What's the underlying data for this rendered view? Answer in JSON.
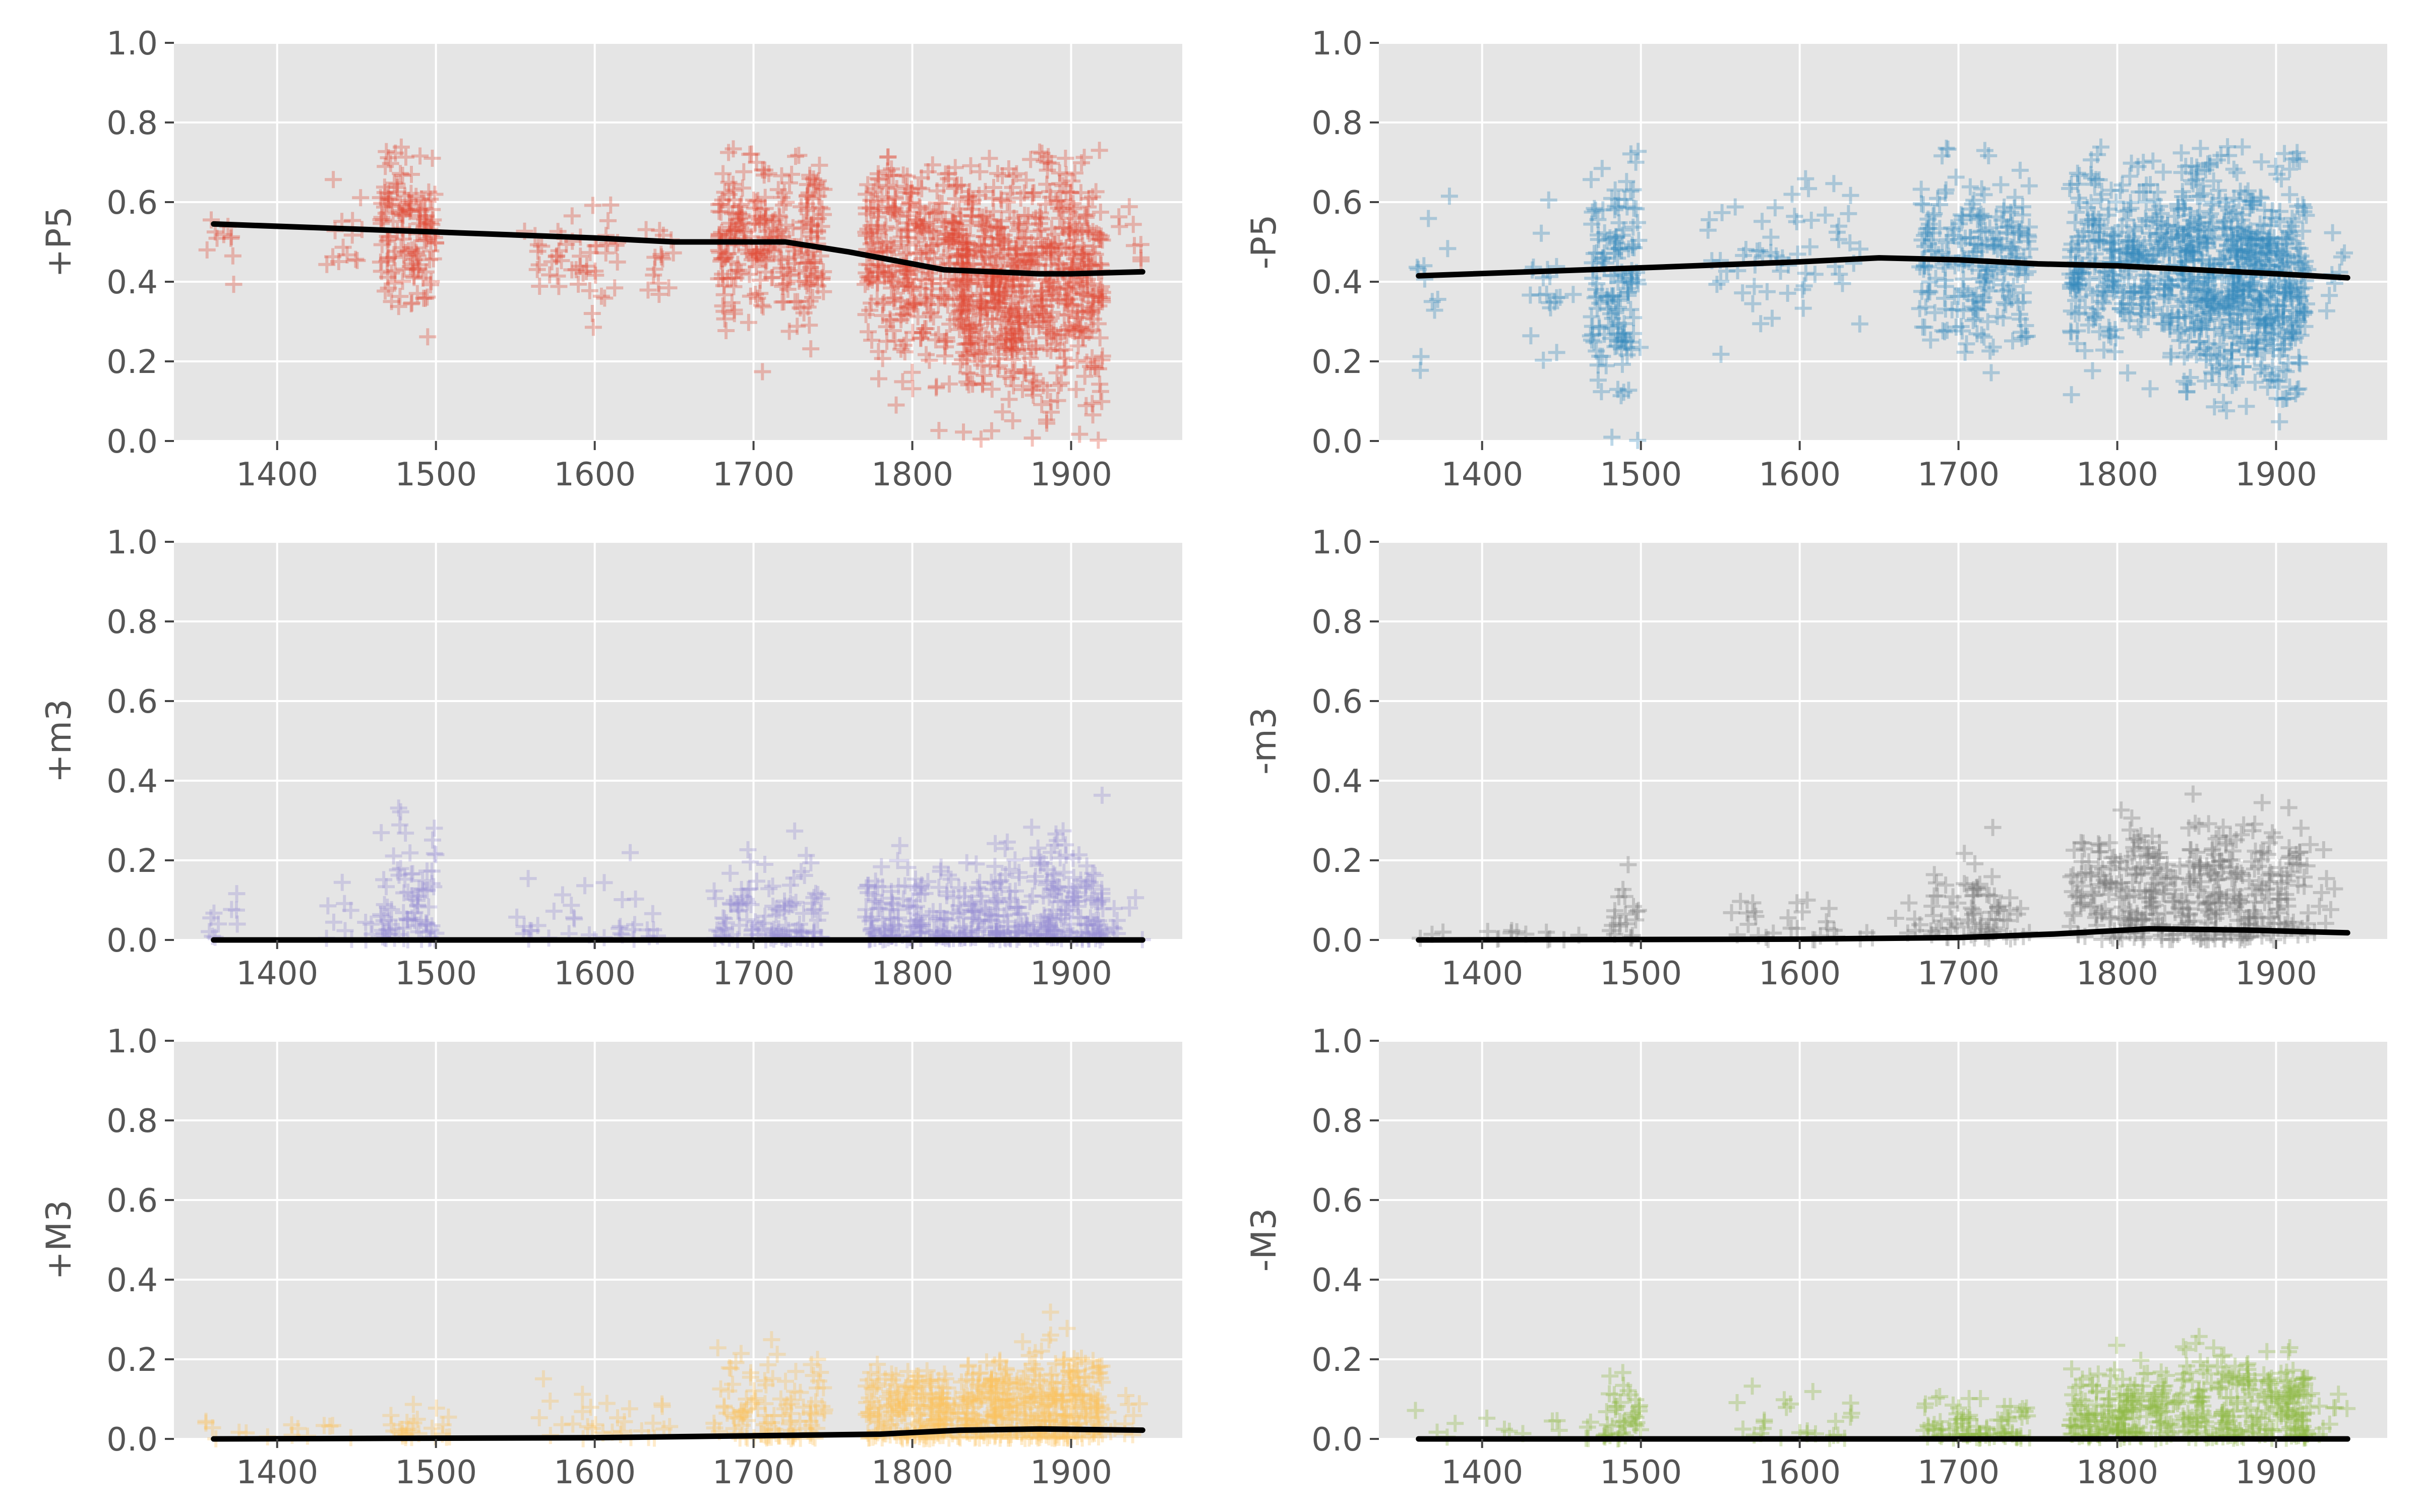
{
  "chart_data": [
    {
      "type": "scatter",
      "ylabel": "+P5",
      "color": "#E24A33",
      "xlim": [
        1335,
        1970
      ],
      "ylim": [
        0,
        1
      ],
      "xticks": [
        1400,
        1500,
        1600,
        1700,
        1800,
        1900
      ],
      "yticks": [
        0.0,
        0.2,
        0.4,
        0.6,
        0.8,
        1.0
      ],
      "tick_labels_x": [
        "1400",
        "1500",
        "1600",
        "1700",
        "1800",
        "1900"
      ],
      "tick_labels_y": [
        "0.0",
        "0.2",
        "0.4",
        "0.6",
        "0.8",
        "1.0"
      ],
      "grid": true,
      "clusters": [
        {
          "x": [
            1355,
            1375
          ],
          "y": [
            0.52,
            0.05
          ],
          "n": 10
        },
        {
          "x": [
            1430,
            1455
          ],
          "y": [
            0.5,
            0.06
          ],
          "n": 14
        },
        {
          "x": [
            1465,
            1500
          ],
          "y": [
            0.52,
            0.1
          ],
          "n": 140
        },
        {
          "x": [
            1555,
            1615
          ],
          "y": [
            0.48,
            0.08
          ],
          "n": 50
        },
        {
          "x": [
            1630,
            1650
          ],
          "y": [
            0.47,
            0.07
          ],
          "n": 15
        },
        {
          "x": [
            1678,
            1745
          ],
          "y": [
            0.5,
            0.11
          ],
          "n": 260
        },
        {
          "x": [
            1770,
            1830
          ],
          "y": [
            0.45,
            0.13
          ],
          "n": 320
        },
        {
          "x": [
            1830,
            1870
          ],
          "y": [
            0.38,
            0.14
          ],
          "n": 340
        },
        {
          "x": [
            1870,
            1920
          ],
          "y": [
            0.4,
            0.15
          ],
          "n": 340
        },
        {
          "x": [
            1925,
            1945
          ],
          "y": [
            0.52,
            0.05
          ],
          "n": 8
        }
      ],
      "trend": {
        "x": [
          1360,
          1500,
          1600,
          1650,
          1700,
          1720,
          1760,
          1820,
          1880,
          1900,
          1945
        ],
        "y": [
          0.545,
          0.525,
          0.51,
          0.5,
          0.5,
          0.5,
          0.475,
          0.43,
          0.42,
          0.42,
          0.425
        ]
      }
    },
    {
      "type": "scatter",
      "ylabel": "-P5",
      "color": "#348ABD",
      "xlim": [
        1335,
        1970
      ],
      "ylim": [
        0,
        1
      ],
      "xticks": [
        1400,
        1500,
        1600,
        1700,
        1800,
        1900
      ],
      "yticks": [
        0.0,
        0.2,
        0.4,
        0.6,
        0.8,
        1.0
      ],
      "tick_labels_x": [
        "1400",
        "1500",
        "1600",
        "1700",
        "1800",
        "1900"
      ],
      "tick_labels_y": [
        "0.0",
        "0.2",
        "0.4",
        "0.6",
        "0.8",
        "1.0"
      ],
      "grid": true,
      "clusters": [
        {
          "x": [
            1355,
            1380
          ],
          "y": [
            0.35,
            0.13
          ],
          "n": 12
        },
        {
          "x": [
            1430,
            1460
          ],
          "y": [
            0.42,
            0.1
          ],
          "n": 20
        },
        {
          "x": [
            1468,
            1500
          ],
          "y": [
            0.4,
            0.15
          ],
          "n": 150
        },
        {
          "x": [
            1540,
            1640
          ],
          "y": [
            0.45,
            0.1
          ],
          "n": 60
        },
        {
          "x": [
            1675,
            1745
          ],
          "y": [
            0.45,
            0.12
          ],
          "n": 230
        },
        {
          "x": [
            1770,
            1840
          ],
          "y": [
            0.44,
            0.12
          ],
          "n": 330
        },
        {
          "x": [
            1840,
            1880
          ],
          "y": [
            0.42,
            0.14
          ],
          "n": 330
        },
        {
          "x": [
            1880,
            1920
          ],
          "y": [
            0.4,
            0.14
          ],
          "n": 300
        },
        {
          "x": [
            1925,
            1945
          ],
          "y": [
            0.45,
            0.08
          ],
          "n": 8
        }
      ],
      "trend": {
        "x": [
          1360,
          1500,
          1600,
          1650,
          1700,
          1750,
          1800,
          1850,
          1900,
          1945
        ],
        "y": [
          0.415,
          0.435,
          0.45,
          0.46,
          0.455,
          0.445,
          0.44,
          0.43,
          0.42,
          0.41
        ]
      }
    },
    {
      "type": "scatter",
      "ylabel": "+m3",
      "color": "#988ED5",
      "xlim": [
        1335,
        1970
      ],
      "ylim": [
        0,
        1
      ],
      "xticks": [
        1400,
        1500,
        1600,
        1700,
        1800,
        1900
      ],
      "yticks": [
        0.0,
        0.2,
        0.4,
        0.6,
        0.8,
        1.0
      ],
      "tick_labels_x": [
        "1400",
        "1500",
        "1600",
        "1700",
        "1800",
        "1900"
      ],
      "tick_labels_y": [
        "0.0",
        "0.2",
        "0.4",
        "0.6",
        "0.8",
        "1.0"
      ],
      "grid": true,
      "clusters": [
        {
          "x": [
            1355,
            1380
          ],
          "y": [
            0.03,
            0.05
          ],
          "n": 10
        },
        {
          "x": [
            1430,
            1460
          ],
          "y": [
            0.03,
            0.06
          ],
          "n": 12
        },
        {
          "x": [
            1465,
            1500
          ],
          "y": [
            0.08,
            0.1
          ],
          "n": 80
        },
        {
          "x": [
            1550,
            1640
          ],
          "y": [
            0.03,
            0.07
          ],
          "n": 35
        },
        {
          "x": [
            1675,
            1745
          ],
          "y": [
            0.05,
            0.07
          ],
          "n": 110
        },
        {
          "x": [
            1770,
            1840
          ],
          "y": [
            0.06,
            0.07
          ],
          "n": 160
        },
        {
          "x": [
            1840,
            1920
          ],
          "y": [
            0.07,
            0.09
          ],
          "n": 230
        },
        {
          "x": [
            1920,
            1945
          ],
          "y": [
            0.05,
            0.09
          ],
          "n": 10
        }
      ],
      "trend": {
        "x": [
          1360,
          1945
        ],
        "y": [
          0.0,
          0.0
        ]
      }
    },
    {
      "type": "scatter",
      "ylabel": "-m3",
      "color": "#777777",
      "xlim": [
        1335,
        1970
      ],
      "ylim": [
        0,
        1
      ],
      "xticks": [
        1400,
        1500,
        1600,
        1700,
        1800,
        1900
      ],
      "yticks": [
        0.0,
        0.2,
        0.4,
        0.6,
        0.8,
        1.0
      ],
      "tick_labels_x": [
        "1400",
        "1500",
        "1600",
        "1700",
        "1800",
        "1900"
      ],
      "tick_labels_y": [
        "0.0",
        "0.2",
        "0.4",
        "0.6",
        "0.8",
        "1.0"
      ],
      "grid": true,
      "clusters": [
        {
          "x": [
            1355,
            1470
          ],
          "y": [
            0.01,
            0.01
          ],
          "n": 15
        },
        {
          "x": [
            1480,
            1500
          ],
          "y": [
            0.05,
            0.06
          ],
          "n": 20
        },
        {
          "x": [
            1550,
            1700
          ],
          "y": [
            0.03,
            0.05
          ],
          "n": 40
        },
        {
          "x": [
            1680,
            1745
          ],
          "y": [
            0.06,
            0.07
          ],
          "n": 70
        },
        {
          "x": [
            1770,
            1840
          ],
          "y": [
            0.12,
            0.08
          ],
          "n": 180
        },
        {
          "x": [
            1840,
            1920
          ],
          "y": [
            0.12,
            0.09
          ],
          "n": 220
        },
        {
          "x": [
            1920,
            1945
          ],
          "y": [
            0.1,
            0.08
          ],
          "n": 10
        }
      ],
      "trend": {
        "x": [
          1360,
          1600,
          1700,
          1760,
          1820,
          1880,
          1945
        ],
        "y": [
          0.0,
          0.002,
          0.006,
          0.015,
          0.028,
          0.025,
          0.018
        ]
      }
    },
    {
      "type": "scatter",
      "ylabel": "+M3",
      "color": "#FBC15E",
      "xlim": [
        1335,
        1970
      ],
      "ylim": [
        0,
        1
      ],
      "xticks": [
        1400,
        1500,
        1600,
        1700,
        1800,
        1900
      ],
      "yticks": [
        0.0,
        0.2,
        0.4,
        0.6,
        0.8,
        1.0
      ],
      "tick_labels_x": [
        "1400",
        "1500",
        "1600",
        "1700",
        "1800",
        "1900"
      ],
      "tick_labels_y": [
        "0.0",
        "0.2",
        "0.4",
        "0.6",
        "0.8",
        "1.0"
      ],
      "grid": true,
      "clusters": [
        {
          "x": [
            1355,
            1460
          ],
          "y": [
            0.02,
            0.02
          ],
          "n": 15
        },
        {
          "x": [
            1470,
            1510
          ],
          "y": [
            0.04,
            0.04
          ],
          "n": 25
        },
        {
          "x": [
            1560,
            1650
          ],
          "y": [
            0.04,
            0.04
          ],
          "n": 30
        },
        {
          "x": [
            1675,
            1745
          ],
          "y": [
            0.07,
            0.07
          ],
          "n": 110
        },
        {
          "x": [
            1770,
            1840
          ],
          "y": [
            0.07,
            0.06
          ],
          "n": 220
        },
        {
          "x": [
            1840,
            1920
          ],
          "y": [
            0.08,
            0.07
          ],
          "n": 320
        },
        {
          "x": [
            1920,
            1945
          ],
          "y": [
            0.05,
            0.04
          ],
          "n": 10
        }
      ],
      "trend": {
        "x": [
          1360,
          1600,
          1700,
          1780,
          1830,
          1880,
          1945
        ],
        "y": [
          0.0,
          0.003,
          0.008,
          0.012,
          0.022,
          0.025,
          0.022
        ]
      }
    },
    {
      "type": "scatter",
      "ylabel": "-M3",
      "color": "#8EBA42",
      "xlim": [
        1335,
        1970
      ],
      "ylim": [
        0,
        1
      ],
      "xticks": [
        1400,
        1500,
        1600,
        1700,
        1800,
        1900
      ],
      "yticks": [
        0.0,
        0.2,
        0.4,
        0.6,
        0.8,
        1.0
      ],
      "tick_labels_x": [
        "1400",
        "1500",
        "1600",
        "1700",
        "1800",
        "1900"
      ],
      "tick_labels_y": [
        "0.0",
        "0.2",
        "0.4",
        "0.6",
        "0.8",
        "1.0"
      ],
      "grid": true,
      "clusters": [
        {
          "x": [
            1355,
            1470
          ],
          "y": [
            0.02,
            0.02
          ],
          "n": 15
        },
        {
          "x": [
            1475,
            1500
          ],
          "y": [
            0.05,
            0.05
          ],
          "n": 40
        },
        {
          "x": [
            1560,
            1640
          ],
          "y": [
            0.04,
            0.05
          ],
          "n": 25
        },
        {
          "x": [
            1675,
            1745
          ],
          "y": [
            0.03,
            0.04
          ],
          "n": 80
        },
        {
          "x": [
            1770,
            1840
          ],
          "y": [
            0.06,
            0.06
          ],
          "n": 180
        },
        {
          "x": [
            1840,
            1920
          ],
          "y": [
            0.07,
            0.07
          ],
          "n": 230
        },
        {
          "x": [
            1920,
            1945
          ],
          "y": [
            0.05,
            0.05
          ],
          "n": 10
        }
      ],
      "trend": {
        "x": [
          1360,
          1945
        ],
        "y": [
          0.0,
          0.0
        ]
      }
    }
  ]
}
